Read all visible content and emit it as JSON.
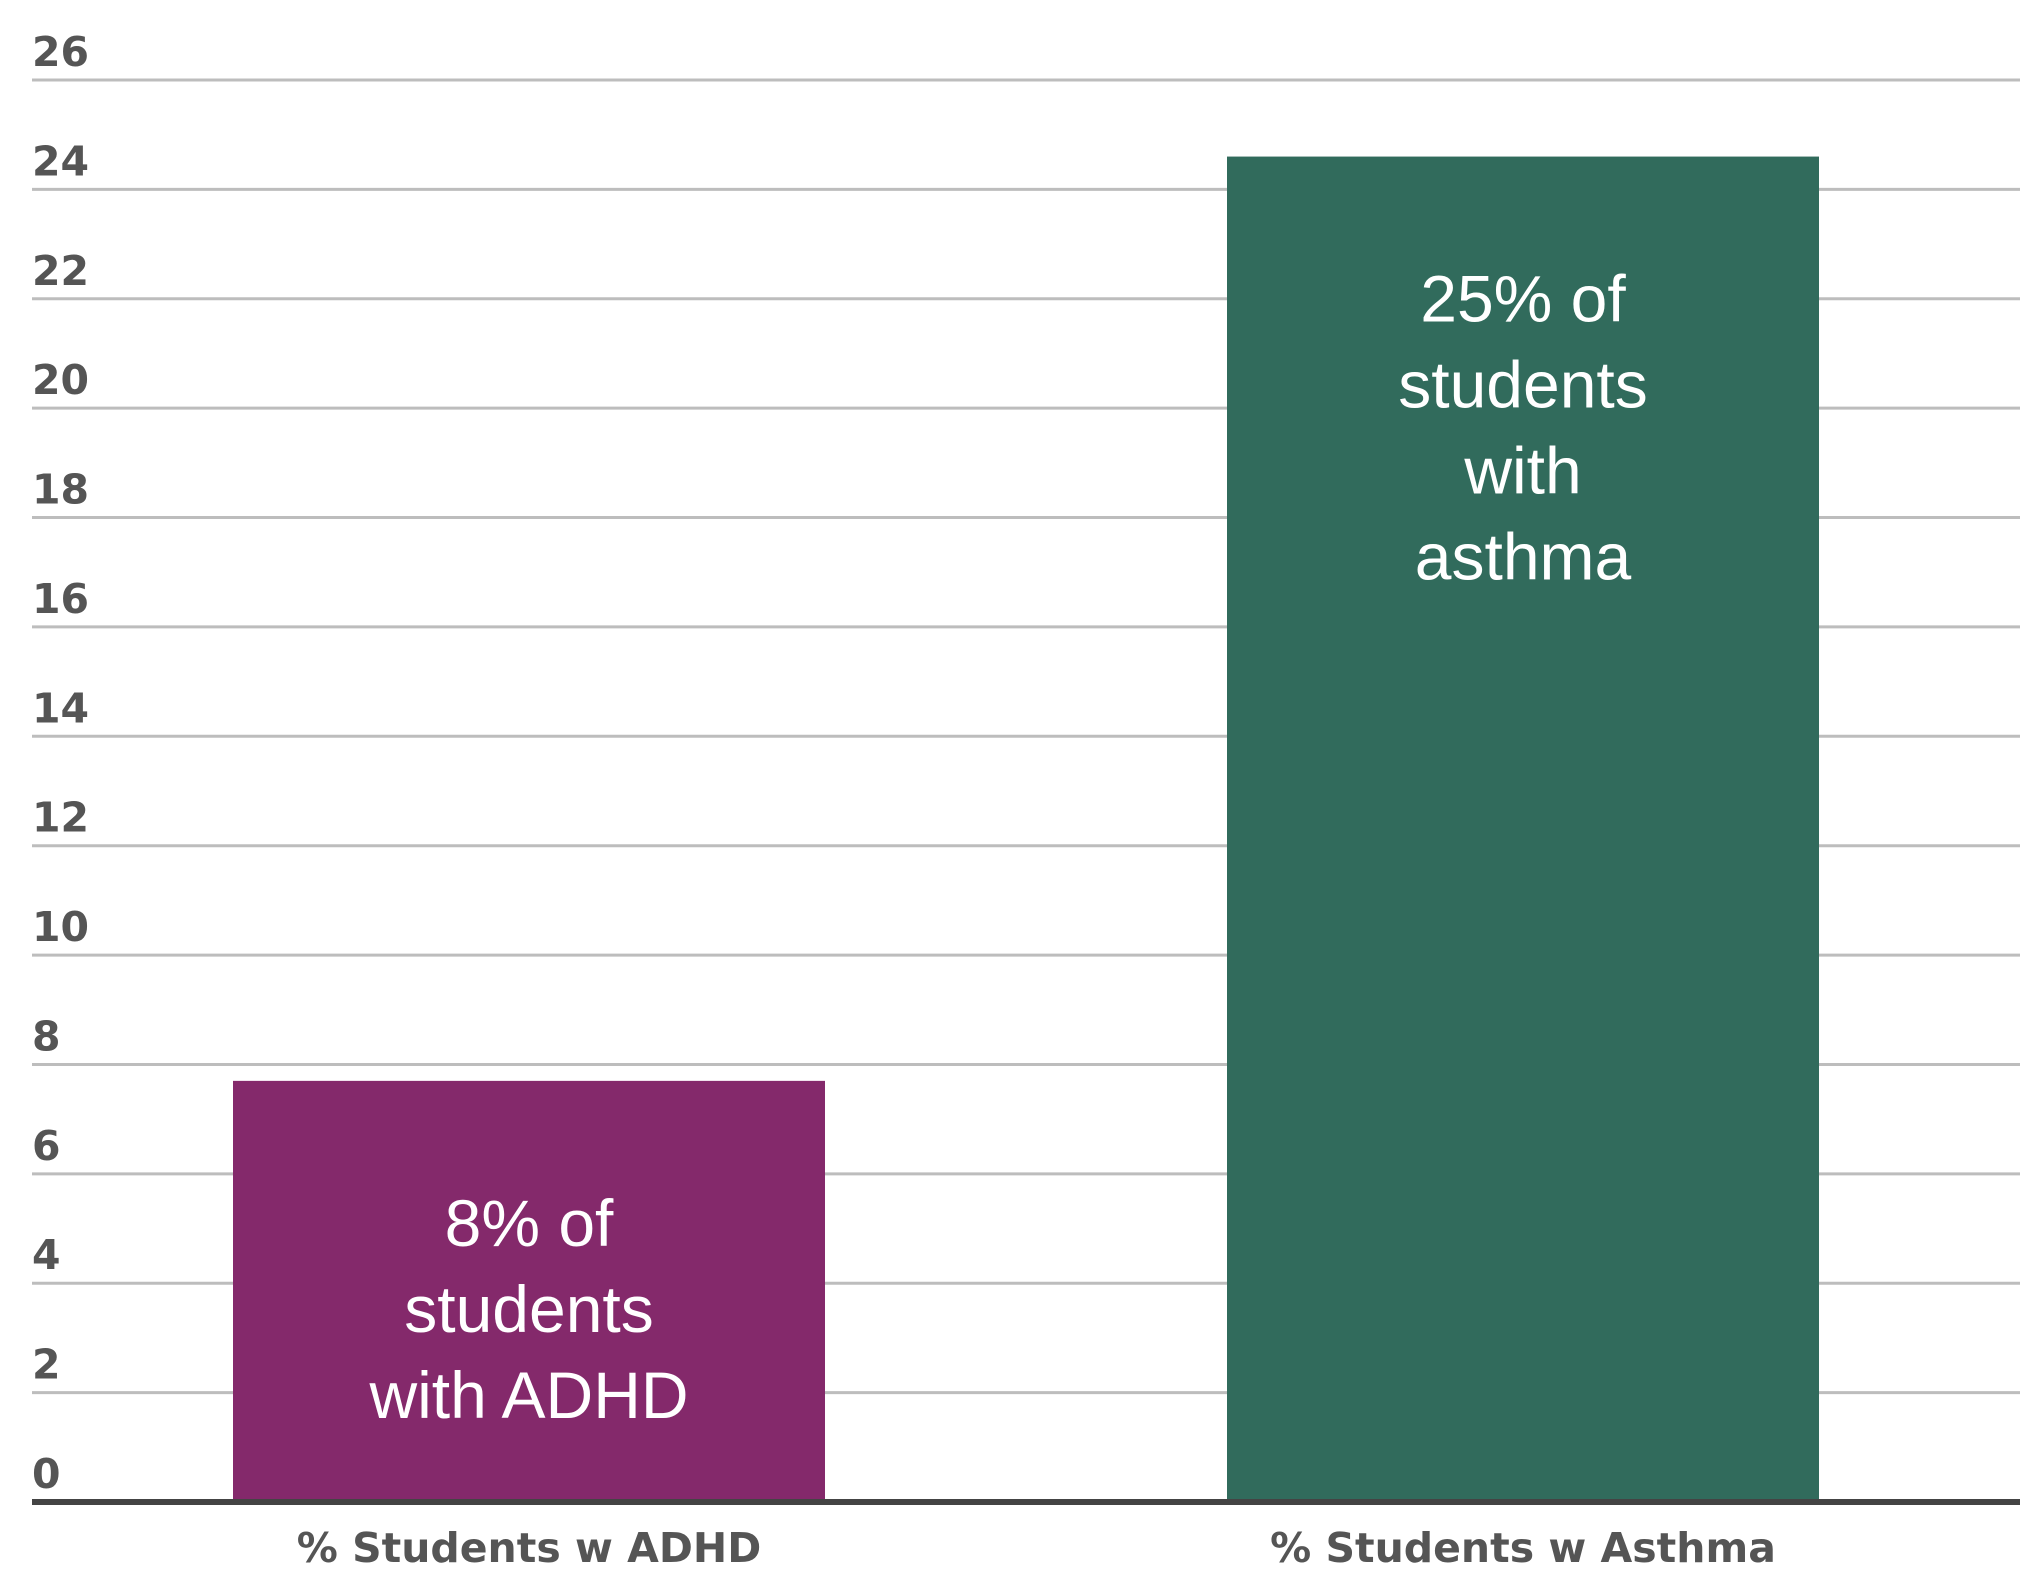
{
  "chart_data": {
    "type": "bar",
    "categories": [
      "% Students w ADHD",
      "% Students w Asthma"
    ],
    "values": [
      7.7,
      24.6
    ],
    "ylim": [
      0,
      26
    ],
    "yticks": [
      0,
      2,
      4,
      6,
      8,
      10,
      12,
      14,
      16,
      18,
      20,
      22,
      24,
      26
    ],
    "grid": true,
    "legend": "none",
    "bar_colors": [
      "#84296b",
      "#316b5c"
    ],
    "bar_labels": [
      [
        "8%  of",
        "students",
        "with ADHD"
      ],
      [
        "25% of",
        "students",
        "with",
        "asthma"
      ]
    ]
  }
}
